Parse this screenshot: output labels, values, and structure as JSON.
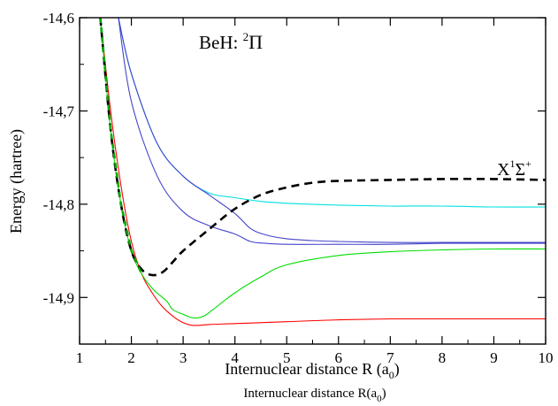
{
  "chart_data": {
    "type": "line",
    "annotation_title": {
      "main": "BeH: ",
      "sup": "2",
      "post": "Π"
    },
    "annotation_curve": {
      "main": "X",
      "sup1": "1",
      "mid": "Σ",
      "sup2": "+"
    },
    "xlabel": {
      "main": "Internuclear distance R (a",
      "sub": "0",
      "post": ")"
    },
    "xlabel_secondary": {
      "main": "Internuclear distance R(a",
      "sub": "0",
      "post": ")"
    },
    "ylabel": "Energy (hartree)",
    "xlim": [
      1,
      10
    ],
    "ylim": [
      -14.95,
      -14.6
    ],
    "x_ticks": [
      1,
      2,
      3,
      4,
      5,
      6,
      7,
      8,
      9,
      10
    ],
    "x_tick_labels": [
      "1",
      "2",
      "3",
      "4",
      "5",
      "6",
      "7",
      "8",
      "9",
      "10"
    ],
    "y_ticks": [
      -14.6,
      -14.7,
      -14.8,
      -14.9
    ],
    "y_tick_labels": [
      "-14,6",
      "-14,7",
      "-14,8",
      "-14,9"
    ],
    "series": [
      {
        "color": "#ff0000",
        "dash": false,
        "x": [
          1.4,
          1.6,
          1.8,
          2.0,
          2.2,
          2.4,
          2.6,
          2.8,
          3.0,
          3.2,
          3.5,
          4.0,
          4.5,
          5.0,
          6.0,
          7.0,
          8.0,
          9.0,
          10.0
        ],
        "y": [
          -14.6,
          -14.7,
          -14.78,
          -14.84,
          -14.875,
          -14.895,
          -14.91,
          -14.92,
          -14.927,
          -14.93,
          -14.929,
          -14.928,
          -14.927,
          -14.926,
          -14.924,
          -14.923,
          -14.923,
          -14.923,
          -14.923
        ]
      },
      {
        "color": "#00dd00",
        "dash": false,
        "x": [
          1.4,
          1.6,
          1.8,
          2.0,
          2.2,
          2.4,
          2.6,
          2.7,
          2.8,
          3.0,
          3.2,
          3.4,
          3.6,
          4.0,
          4.5,
          5.0,
          6.0,
          7.0,
          8.0,
          9.0,
          10.0
        ],
        "y": [
          -14.6,
          -14.72,
          -14.8,
          -14.85,
          -14.875,
          -14.89,
          -14.9,
          -14.905,
          -14.913,
          -14.918,
          -14.922,
          -14.92,
          -14.912,
          -14.895,
          -14.878,
          -14.865,
          -14.855,
          -14.851,
          -14.849,
          -14.848,
          -14.848
        ]
      },
      {
        "color": "#00e0e0",
        "dash": false,
        "x": [
          1.75,
          2.0,
          2.5,
          3.0,
          3.5,
          4.0,
          4.5,
          5.0,
          6.0,
          7.0,
          8.0,
          9.0,
          10.0
        ],
        "y": [
          -14.6,
          -14.66,
          -14.735,
          -14.77,
          -14.788,
          -14.793,
          -14.797,
          -14.799,
          -14.801,
          -14.802,
          -14.802,
          -14.803,
          -14.803
        ]
      },
      {
        "color": "#4444cc",
        "dash": false,
        "x": [
          1.75,
          2.0,
          2.5,
          3.0,
          3.5,
          4.0,
          4.3,
          4.6,
          5.0,
          5.5,
          6.0,
          7.0,
          8.0,
          9.0,
          10.0
        ],
        "y": [
          -14.6,
          -14.66,
          -14.735,
          -14.77,
          -14.79,
          -14.81,
          -14.826,
          -14.833,
          -14.837,
          -14.839,
          -14.84,
          -14.841,
          -14.841,
          -14.841,
          -14.841
        ]
      },
      {
        "color": "#4444cc",
        "dash": false,
        "x": [
          1.75,
          2.0,
          2.5,
          3.0,
          3.5,
          4.0,
          4.3,
          4.6,
          5.0,
          6.0,
          7.0,
          8.0,
          9.0,
          10.0
        ],
        "y": [
          -14.6,
          -14.69,
          -14.77,
          -14.808,
          -14.823,
          -14.832,
          -14.84,
          -14.842,
          -14.843,
          -14.843,
          -14.843,
          -14.842,
          -14.842,
          -14.842
        ]
      },
      {
        "color": "#000000",
        "dash": true,
        "x": [
          1.4,
          1.6,
          1.8,
          2.0,
          2.2,
          2.4,
          2.6,
          2.8,
          3.0,
          3.5,
          4.0,
          4.5,
          5.0,
          5.5,
          6.0,
          7.0,
          8.0,
          9.0,
          10.0
        ],
        "y": [
          -14.6,
          -14.72,
          -14.8,
          -14.85,
          -14.87,
          -14.876,
          -14.873,
          -14.862,
          -14.85,
          -14.827,
          -14.805,
          -14.79,
          -14.782,
          -14.777,
          -14.775,
          -14.774,
          -14.773,
          -14.773,
          -14.774
        ]
      }
    ]
  }
}
